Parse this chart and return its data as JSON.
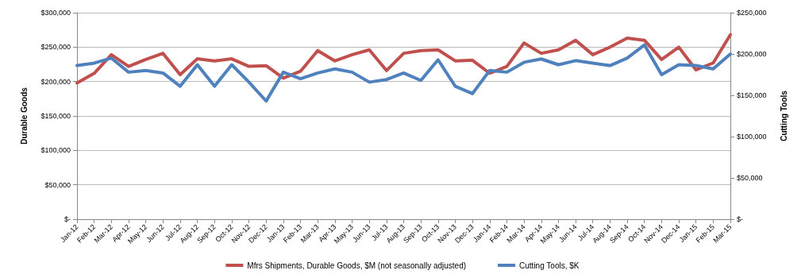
{
  "chart_data": {
    "type": "line",
    "ylabel": "Durable Goods",
    "y2label": "Cutting Tools",
    "categories": [
      "Jan-12",
      "Feb-12",
      "Mar-12",
      "Apr-12",
      "May-12",
      "Jun-12",
      "Jul-12",
      "Aug-12",
      "Sep-12",
      "Oct-12",
      "Nov-12",
      "Dec-12",
      "Jan-13",
      "Feb-13",
      "Mar-13",
      "Apr-13",
      "May-13",
      "Jun-13",
      "Jul-13",
      "Aug-13",
      "Sep-13",
      "Oct-13",
      "Nov-13",
      "Dec-13",
      "Jan-14",
      "Feb-14",
      "Mar-14",
      "Apr-14",
      "May-14",
      "Jun-14",
      "Jul-14",
      "Aug-14",
      "Sep-14",
      "Oct-14",
      "Nov-14",
      "Dec-14",
      "Jan-15",
      "Feb-15",
      "Mar-15"
    ],
    "series": [
      {
        "name": "Mfrs Shipments, Durable Goods, $M (not seasonally adjusted)",
        "color": "#c0504d",
        "values": [
          198000,
          212000,
          239000,
          222000,
          232000,
          241000,
          210000,
          233000,
          230000,
          233000,
          222000,
          223000,
          205000,
          215000,
          245000,
          230000,
          239000,
          246000,
          216000,
          241000,
          245000,
          246000,
          230000,
          231000,
          212000,
          222000,
          256000,
          241000,
          246000,
          260000,
          239000,
          250000,
          263000,
          260000,
          232000,
          250000,
          217000,
          227000,
          268000
        ]
      },
      {
        "name": "Cutting Tools, $K",
        "color": "#4f81bd",
        "axis": "y2",
        "values": [
          186000,
          189000,
          195000,
          178000,
          180000,
          177000,
          161000,
          187000,
          161000,
          187000,
          166000,
          143000,
          178000,
          170000,
          177000,
          182000,
          178000,
          166000,
          169000,
          177000,
          168000,
          193000,
          161000,
          152000,
          180000,
          178000,
          190000,
          194000,
          187000,
          192000,
          189000,
          186000,
          195000,
          211000,
          175000,
          187000,
          186000,
          182000,
          200000
        ]
      }
    ],
    "ylim": [
      0,
      300000
    ],
    "yticks": [
      {
        "value": 0,
        "label": "$-"
      },
      {
        "value": 50000,
        "label": "$50,000"
      },
      {
        "value": 100000,
        "label": "$100,000"
      },
      {
        "value": 150000,
        "label": "$150,000"
      },
      {
        "value": 200000,
        "label": "$200,000"
      },
      {
        "value": 250000,
        "label": "$250,000"
      },
      {
        "value": 300000,
        "label": "$300,000"
      }
    ],
    "y2lim": [
      0,
      250000
    ],
    "y2ticks": [
      {
        "value": 0,
        "label": "$-"
      },
      {
        "value": 50000,
        "label": "$50,000"
      },
      {
        "value": 100000,
        "label": "$100,000"
      },
      {
        "value": 150000,
        "label": "$150,000"
      },
      {
        "value": 200000,
        "label": "$200,000"
      },
      {
        "value": 250000,
        "label": "$250,000"
      }
    ],
    "grid": "y",
    "legend": "bottom",
    "marker": "none",
    "line_style": "solid"
  }
}
